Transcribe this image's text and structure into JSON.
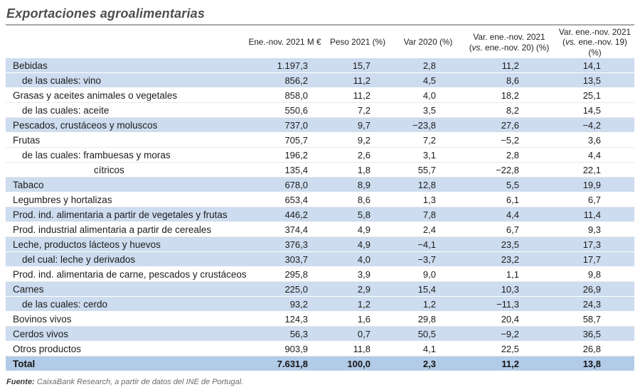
{
  "title": "Exportaciones agroalimentarias",
  "source": {
    "label": "Fuente:",
    "text": " CaixaBank Research, a partir de datos del INE de Portugal."
  },
  "table": {
    "columns": [
      "Ene.-nov. 2021 M €",
      "Peso 2021 (%)",
      "Var 2020 (%)",
      "Var. ene.-nov. 2021\n(vs. ene.-nov. 20) (%)",
      "Var. ene.-nov. 2021\n(vs. ene.-nov. 19) (%)"
    ],
    "rows": [
      {
        "label": "Bebidas",
        "indent": 0,
        "shade": "blue",
        "values": [
          "1.197,3",
          "15,7",
          "2,8",
          "11,2",
          "14,1"
        ]
      },
      {
        "label": "de las cuales: vino",
        "indent": 1,
        "shade": "blue",
        "values": [
          "856,2",
          "11,2",
          "4,5",
          "8,6",
          "13,5"
        ]
      },
      {
        "label": "Grasas y aceites animales o vegetales",
        "indent": 0,
        "shade": "white",
        "values": [
          "858,0",
          "11,2",
          "4,0",
          "18,2",
          "25,1"
        ]
      },
      {
        "label": "de las cuales: aceite",
        "indent": 1,
        "shade": "white",
        "values": [
          "550,6",
          "7,2",
          "3,5",
          "8,2",
          "14,5"
        ]
      },
      {
        "label": "Pescados, crustáceos y moluscos",
        "indent": 0,
        "shade": "blue",
        "values": [
          "737,0",
          "9,7",
          "−23,8",
          "27,6",
          "−4,2"
        ]
      },
      {
        "label": "Frutas",
        "indent": 0,
        "shade": "white",
        "values": [
          "705,7",
          "9,2",
          "7,2",
          "−5,2",
          "3,6"
        ]
      },
      {
        "label": "de las cuales: frambuesas y moras",
        "indent": 1,
        "shade": "white",
        "values": [
          "196,2",
          "2,6",
          "3,1",
          "2,8",
          "4,4"
        ]
      },
      {
        "label": "cítricos",
        "indent": 2,
        "shade": "white",
        "values": [
          "135,4",
          "1,8",
          "55,7",
          "−22,8",
          "22,1"
        ]
      },
      {
        "label": "Tabaco",
        "indent": 0,
        "shade": "blue",
        "values": [
          "678,0",
          "8,9",
          "12,8",
          "5,5",
          "19,9"
        ]
      },
      {
        "label": "Legumbres y hortalizas",
        "indent": 0,
        "shade": "white",
        "values": [
          "653,4",
          "8,6",
          "1,3",
          "6,1",
          "6,7"
        ]
      },
      {
        "label": "Prod. ind. alimentaria a partir de vegetales y frutas",
        "indent": 0,
        "shade": "blue",
        "values": [
          "446,2",
          "5,8",
          "7,8",
          "4,4",
          "11,4"
        ]
      },
      {
        "label": "Prod. industrial alimentaria a partir de cereales",
        "indent": 0,
        "shade": "white",
        "values": [
          "374,4",
          "4,9",
          "2,4",
          "6,7",
          "9,3"
        ]
      },
      {
        "label": "Leche, productos lácteos y huevos",
        "indent": 0,
        "shade": "blue",
        "values": [
          "376,3",
          "4,9",
          "−4,1",
          "23,5",
          "17,3"
        ]
      },
      {
        "label": "del cual: leche y derivados",
        "indent": 1,
        "shade": "blue",
        "values": [
          "303,7",
          "4,0",
          "−3,7",
          "23,2",
          "17,7"
        ]
      },
      {
        "label": "Prod. ind. alimentaria de carne, pescados y crustáceos",
        "indent": 0,
        "shade": "white",
        "values": [
          "295,8",
          "3,9",
          "9,0",
          "1,1",
          "9,8"
        ]
      },
      {
        "label": "Carnes",
        "indent": 0,
        "shade": "blue",
        "values": [
          "225,0",
          "2,9",
          "15,4",
          "10,3",
          "26,9"
        ]
      },
      {
        "label": "de las cuales: cerdo",
        "indent": 1,
        "shade": "blue",
        "values": [
          "93,2",
          "1,2",
          "1,2",
          "−11,3",
          "24,3"
        ]
      },
      {
        "label": "Bovinos vivos",
        "indent": 0,
        "shade": "white",
        "values": [
          "124,3",
          "1,6",
          "29,8",
          "20,4",
          "58,7"
        ]
      },
      {
        "label": "Cerdos vivos",
        "indent": 0,
        "shade": "blue",
        "values": [
          "56,3",
          "0,7",
          "50,5",
          "−9,2",
          "36,5"
        ]
      },
      {
        "label": "Otros productos",
        "indent": 0,
        "shade": "white",
        "values": [
          "903,9",
          "11,8",
          "4,1",
          "22,5",
          "26,8"
        ]
      },
      {
        "label": "Total",
        "indent": 0,
        "shade": "total",
        "values": [
          "7.631,8",
          "100,0",
          "2,3",
          "11,2",
          "13,8"
        ]
      }
    ]
  },
  "chart_data": {
    "type": "table",
    "title": "Exportaciones agroalimentarias",
    "columns": [
      "Ene.-nov. 2021 M €",
      "Peso 2021 (%)",
      "Var 2020 (%)",
      "Var. ene.-nov. 2021 (vs. ene.-nov. 20) (%)",
      "Var. ene.-nov. 2021 (vs. ene.-nov. 19) (%)"
    ],
    "rows": [
      {
        "label": "Bebidas",
        "values": [
          1197.3,
          15.7,
          2.8,
          11.2,
          14.1
        ]
      },
      {
        "label": "de las cuales: vino",
        "values": [
          856.2,
          11.2,
          4.5,
          8.6,
          13.5
        ]
      },
      {
        "label": "Grasas y aceites animales o vegetales",
        "values": [
          858.0,
          11.2,
          4.0,
          18.2,
          25.1
        ]
      },
      {
        "label": "de las cuales: aceite",
        "values": [
          550.6,
          7.2,
          3.5,
          8.2,
          14.5
        ]
      },
      {
        "label": "Pescados, crustáceos y moluscos",
        "values": [
          737.0,
          9.7,
          -23.8,
          27.6,
          -4.2
        ]
      },
      {
        "label": "Frutas",
        "values": [
          705.7,
          9.2,
          7.2,
          -5.2,
          3.6
        ]
      },
      {
        "label": "de las cuales: frambuesas y moras",
        "values": [
          196.2,
          2.6,
          3.1,
          2.8,
          4.4
        ]
      },
      {
        "label": "cítricos",
        "values": [
          135.4,
          1.8,
          55.7,
          -22.8,
          22.1
        ]
      },
      {
        "label": "Tabaco",
        "values": [
          678.0,
          8.9,
          12.8,
          5.5,
          19.9
        ]
      },
      {
        "label": "Legumbres y hortalizas",
        "values": [
          653.4,
          8.6,
          1.3,
          6.1,
          6.7
        ]
      },
      {
        "label": "Prod. ind. alimentaria a partir de vegetales y frutas",
        "values": [
          446.2,
          5.8,
          7.8,
          4.4,
          11.4
        ]
      },
      {
        "label": "Prod. industrial alimentaria a partir de cereales",
        "values": [
          374.4,
          4.9,
          2.4,
          6.7,
          9.3
        ]
      },
      {
        "label": "Leche, productos lácteos y huevos",
        "values": [
          376.3,
          4.9,
          -4.1,
          23.5,
          17.3
        ]
      },
      {
        "label": "del cual: leche y derivados",
        "values": [
          303.7,
          4.0,
          -3.7,
          23.2,
          17.7
        ]
      },
      {
        "label": "Prod. ind. alimentaria de carne, pescados y crustáceos",
        "values": [
          295.8,
          3.9,
          9.0,
          1.1,
          9.8
        ]
      },
      {
        "label": "Carnes",
        "values": [
          225.0,
          2.9,
          15.4,
          10.3,
          26.9
        ]
      },
      {
        "label": "de las cuales: cerdo",
        "values": [
          93.2,
          1.2,
          1.2,
          -11.3,
          24.3
        ]
      },
      {
        "label": "Bovinos vivos",
        "values": [
          124.3,
          1.6,
          29.8,
          20.4,
          58.7
        ]
      },
      {
        "label": "Cerdos vivos",
        "values": [
          56.3,
          0.7,
          50.5,
          -9.2,
          36.5
        ]
      },
      {
        "label": "Otros productos",
        "values": [
          903.9,
          11.8,
          4.1,
          22.5,
          26.8
        ]
      },
      {
        "label": "Total",
        "values": [
          7631.8,
          100.0,
          2.3,
          11.2,
          13.8
        ]
      }
    ],
    "colors": {
      "row_band_blue": "#cddcef",
      "total_row_blue": "#b2cbe7",
      "title_gray": "#4e4e4e"
    },
    "source": "CaixaBank Research, a partir de datos del INE de Portugal."
  }
}
